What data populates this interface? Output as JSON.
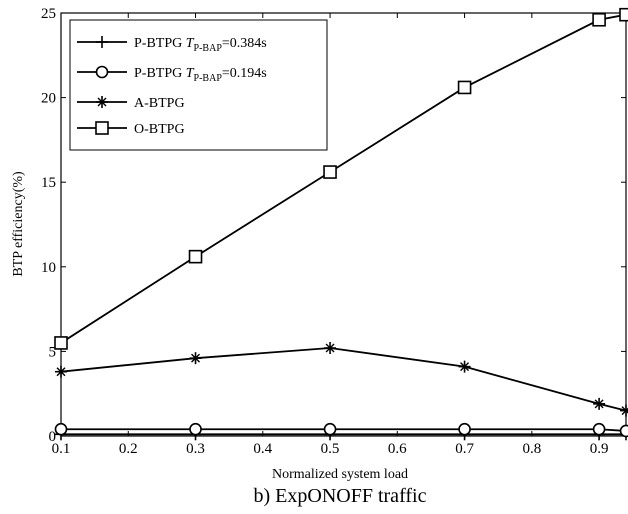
{
  "chart_data": {
    "type": "line",
    "caption": "b) ExpONOFF traffic",
    "xlabel": "Normalized system load",
    "ylabel": "BTP efficiency(%)",
    "xlim": [
      0.1,
      0.94
    ],
    "ylim": [
      0,
      25
    ],
    "xticks": [
      0.1,
      0.2,
      0.3,
      0.4,
      0.5,
      0.6,
      0.7,
      0.8,
      0.9
    ],
    "yticks": [
      0,
      5,
      10,
      15,
      20,
      25
    ],
    "grid": false,
    "legend_position": "top-left",
    "series": [
      {
        "name_main": "P-BTPG ",
        "name_var": "T",
        "name_sub": "P-BAP",
        "name_tail": "=0.384s",
        "marker": "plus",
        "x": [
          0.1,
          0.3,
          0.5,
          0.7,
          0.9,
          0.94
        ],
        "y": [
          0.1,
          0.1,
          0.1,
          0.1,
          0.1,
          0.1
        ]
      },
      {
        "name_main": "P-BTPG ",
        "name_var": "T",
        "name_sub": "P-BAP",
        "name_tail": "=0.194s",
        "marker": "circle",
        "x": [
          0.1,
          0.3,
          0.5,
          0.7,
          0.9,
          0.94
        ],
        "y": [
          0.4,
          0.4,
          0.4,
          0.4,
          0.4,
          0.3
        ]
      },
      {
        "name_main": "A-BTPG",
        "marker": "star",
        "x": [
          0.1,
          0.3,
          0.5,
          0.7,
          0.9,
          0.94
        ],
        "y": [
          3.8,
          4.6,
          5.2,
          4.1,
          1.9,
          1.5
        ]
      },
      {
        "name_main": "O-BTPG",
        "marker": "square",
        "x": [
          0.1,
          0.3,
          0.5,
          0.7,
          0.9,
          0.94
        ],
        "y": [
          5.5,
          10.6,
          15.6,
          20.6,
          24.6,
          24.9
        ]
      }
    ]
  }
}
